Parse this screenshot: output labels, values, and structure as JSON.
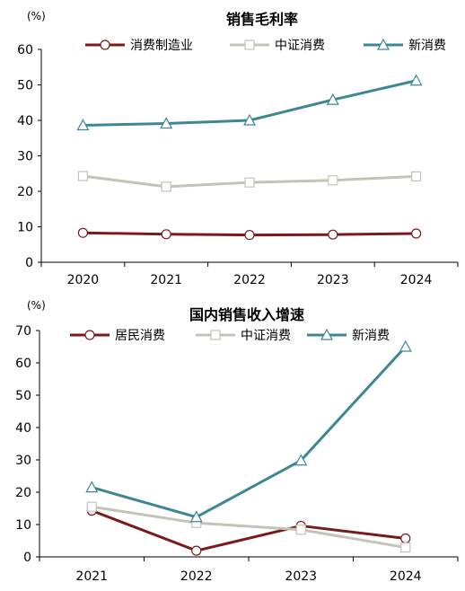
{
  "chart_data": [
    {
      "type": "line",
      "title": "销售毛利率",
      "unit": "(%)",
      "categories": [
        "2020",
        "2021",
        "2022",
        "2023",
        "2024"
      ],
      "ylim": [
        0,
        60
      ],
      "yticks": [
        "0",
        "10",
        "20",
        "30",
        "40",
        "50",
        "60"
      ],
      "legend_position": "top",
      "grid": false,
      "series": [
        {
          "name": "消费制造业",
          "color": "#7b1a1a",
          "marker": "circle",
          "values": [
            8.3,
            7.9,
            7.7,
            7.8,
            8.1
          ]
        },
        {
          "name": "中证消费",
          "color": "#c3c3b9",
          "marker": "square",
          "values": [
            24.3,
            21.3,
            22.5,
            23.1,
            24.2
          ]
        },
        {
          "name": "新消费",
          "color": "#3d8794",
          "marker": "triangle",
          "values": [
            38.6,
            39.1,
            40.0,
            45.8,
            51.2
          ]
        }
      ]
    },
    {
      "type": "line",
      "title": "国内销售收入增速",
      "unit": "(%)",
      "categories": [
        "2021",
        "2022",
        "2023",
        "2024"
      ],
      "ylim": [
        0,
        70
      ],
      "yticks": [
        "0",
        "10",
        "20",
        "30",
        "40",
        "50",
        "60",
        "70"
      ],
      "legend_position": "top",
      "grid": false,
      "series": [
        {
          "name": "居民消费",
          "color": "#7b1a1a",
          "marker": "circle",
          "values": [
            14.3,
            1.9,
            9.6,
            5.7
          ]
        },
        {
          "name": "中证消费",
          "color": "#c3c3b9",
          "marker": "square",
          "values": [
            15.5,
            10.5,
            8.4,
            2.9
          ]
        },
        {
          "name": "新消费",
          "color": "#3d8794",
          "marker": "triangle",
          "values": [
            21.5,
            12.3,
            29.8,
            65.0
          ]
        }
      ]
    }
  ]
}
